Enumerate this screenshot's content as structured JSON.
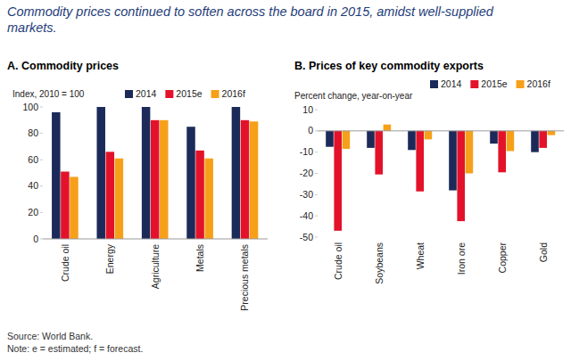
{
  "title": "Commodity prices continued to soften across the board in 2015, amidst well-supplied markets.",
  "source": "Source: World Bank.",
  "note": "Note: e = estimated; f = forecast.",
  "chart_data": [
    {
      "type": "bar",
      "title": "A. Commodity prices",
      "ylabel": "Index, 2010 = 100",
      "categories": [
        "Crude oil",
        "Energy",
        "Agriculture",
        "Metals",
        "Precious metals"
      ],
      "series": [
        {
          "name": "2014",
          "color": "#1b2a59",
          "values": [
            96,
            100,
            100,
            85,
            100
          ]
        },
        {
          "name": "2015e",
          "color": "#e3122a",
          "values": [
            51,
            66,
            90,
            67,
            90
          ]
        },
        {
          "name": "2016f",
          "color": "#f6a01a",
          "values": [
            47,
            61,
            90,
            61,
            89
          ]
        }
      ],
      "ylim": [
        0,
        100
      ],
      "yticks": [
        0,
        20,
        40,
        60,
        80,
        100
      ],
      "grid": false,
      "legend": "top"
    },
    {
      "type": "bar",
      "title": "B. Prices of key commodity exports",
      "ylabel": "Percent change, year-on-year",
      "categories": [
        "Crude oil",
        "Soybeans",
        "Wheat",
        "Iron ore",
        "Copper",
        "Gold"
      ],
      "series": [
        {
          "name": "2014",
          "color": "#1b2a59",
          "values": [
            -7.5,
            -8,
            -9,
            -28,
            -6,
            -10
          ]
        },
        {
          "name": "2015e",
          "color": "#e3122a",
          "values": [
            -47,
            -20.5,
            -28.5,
            -42.5,
            -19.5,
            -8
          ]
        },
        {
          "name": "2016f",
          "color": "#f6a01a",
          "values": [
            -8.5,
            3,
            -4,
            -20,
            -9.5,
            -2
          ]
        }
      ],
      "ylim": [
        -50,
        10
      ],
      "yticks": [
        -50,
        -40,
        -30,
        -20,
        -10,
        0,
        10
      ],
      "grid": false,
      "legend": "top"
    }
  ]
}
